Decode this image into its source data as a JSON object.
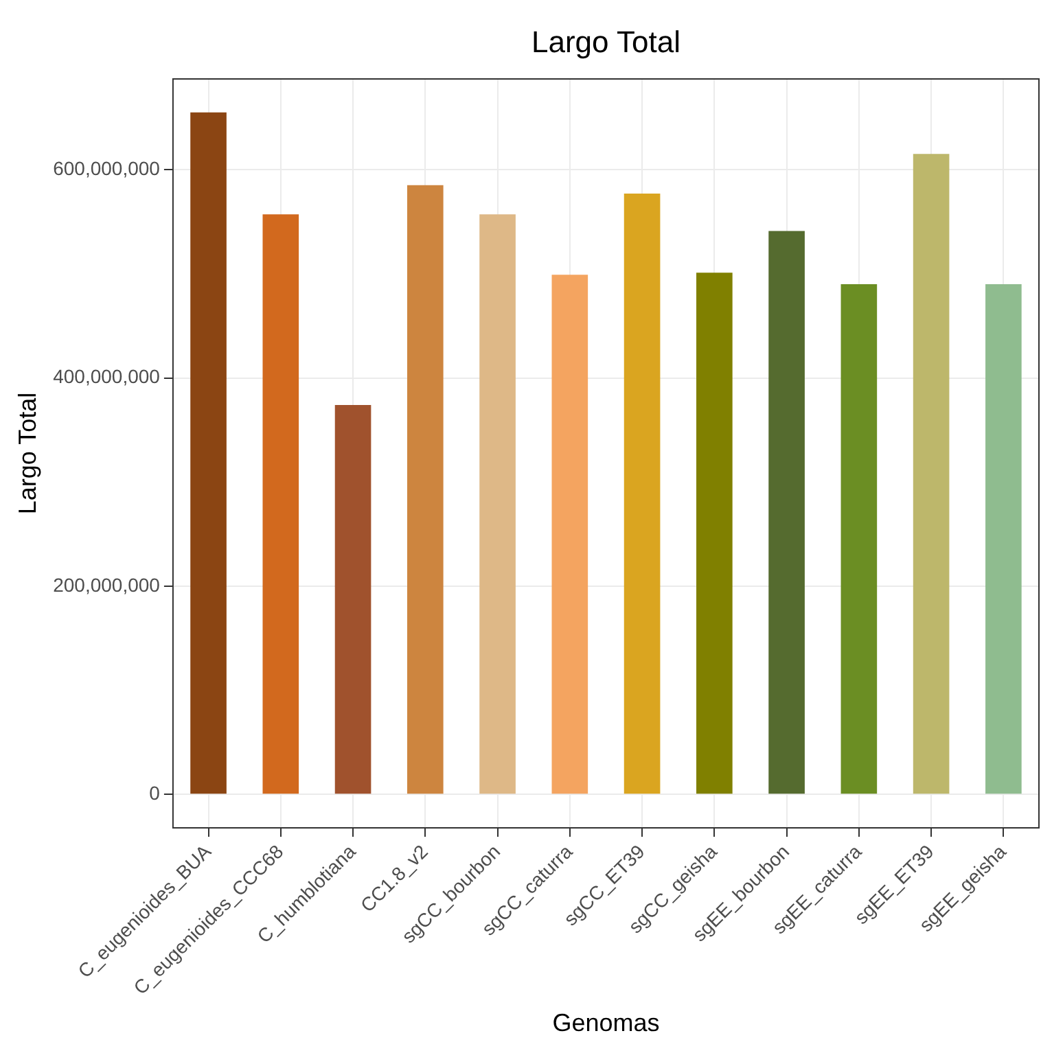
{
  "chart_data": {
    "type": "bar",
    "title": "Largo Total",
    "xlabel": "Genomas",
    "ylabel": "Largo Total",
    "categories": [
      "C_eugenioides_BUA",
      "C_eugenioides_CCC68",
      "C_humblotiana",
      "CC1.8_v2",
      "sgCC_bourbon",
      "sgCC_caturra",
      "sgCC_ET39",
      "sgCC_geisha",
      "sgEE_bourbon",
      "sgEE_caturra",
      "sgEE_ET39",
      "sgEE_geisha"
    ],
    "values": [
      655000000,
      557000000,
      374000000,
      585000000,
      557000000,
      499000000,
      577000000,
      501000000,
      541000000,
      490000000,
      615000000,
      490000000
    ],
    "colors": [
      "#8b4513",
      "#d2691e",
      "#a0522d",
      "#cd853f",
      "#deb887",
      "#f4a460",
      "#daa520",
      "#808000",
      "#556b2f",
      "#6b8e23",
      "#bdb76b",
      "#8fbc8f"
    ],
    "ylim": [
      -32750000,
      687750000
    ],
    "yticks": [
      {
        "value": 0,
        "label": "0"
      },
      {
        "value": 200000000,
        "label": "200,000,000"
      },
      {
        "value": 400000000,
        "label": "400,000,000"
      },
      {
        "value": 600000000,
        "label": "600,000,000"
      }
    ],
    "grid": true,
    "legend": false
  }
}
